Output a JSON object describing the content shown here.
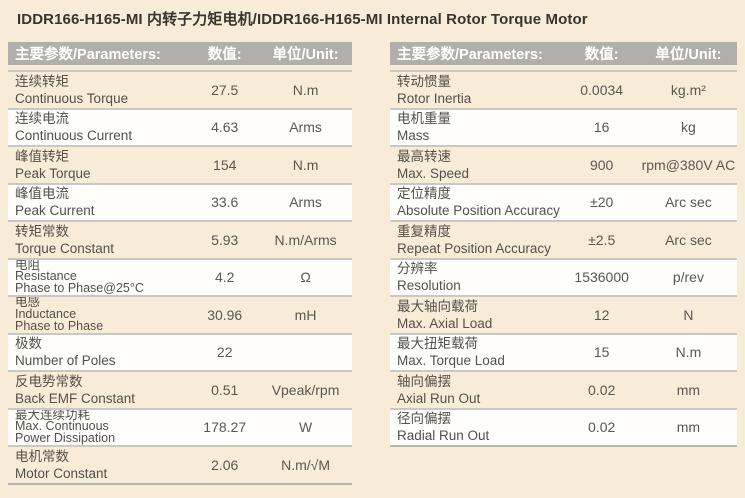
{
  "title": "IDDR166-H165-MI 内转子力矩电机/IDDR166-H165-MI Internal Rotor Torque Motor",
  "colors": {
    "page_bg": "#f8ecd8",
    "header_bg": "#b0afad",
    "header_text": "#ffffff",
    "row_beige": "#f8ecd8",
    "row_white": "#fffefc",
    "divider": "#cac8c4",
    "text": "#54504a"
  },
  "tables": [
    {
      "headers": {
        "param": "主要参数/Parameters:",
        "value": "数值:",
        "unit": "单位/Unit:"
      },
      "rows": [
        {
          "lines": [
            "连续转矩",
            "Continuous Torque"
          ],
          "value": "27.5",
          "unit": "N.m"
        },
        {
          "lines": [
            "连续电流",
            "Continuous Current"
          ],
          "value": "4.63",
          "unit": "Arms"
        },
        {
          "lines": [
            "峰值转矩",
            "Peak Torque"
          ],
          "value": "154",
          "unit": "N.m"
        },
        {
          "lines": [
            "峰值电流",
            "Peak Current"
          ],
          "value": "33.6",
          "unit": "Arms"
        },
        {
          "lines": [
            "转矩常数",
            "Torque Constant"
          ],
          "value": "5.93",
          "unit": "N.m/Arms"
        },
        {
          "lines": [
            "电阻",
            "Resistance",
            "Phase to Phase@25°C"
          ],
          "value": "4.2",
          "unit": "Ω"
        },
        {
          "lines": [
            "电感",
            "Inductance",
            "Phase to Phase"
          ],
          "value": "30.96",
          "unit": "mH"
        },
        {
          "lines": [
            "极数",
            "Number of Poles"
          ],
          "value": "22",
          "unit": ""
        },
        {
          "lines": [
            "反电势常数",
            "Back EMF Constant"
          ],
          "value": "0.51",
          "unit": "Vpeak/rpm"
        },
        {
          "lines": [
            "最大连续功耗",
            "Max. Continuous",
            "Power Dissipation"
          ],
          "value": "178.27",
          "unit": "W"
        },
        {
          "lines": [
            "电机常数",
            "Motor Constant"
          ],
          "value": "2.06",
          "unit": "N.m/√M"
        }
      ]
    },
    {
      "headers": {
        "param": "主要参数/Parameters:",
        "value": "数值:",
        "unit": "单位/Unit:"
      },
      "rows": [
        {
          "lines": [
            "转动惯量",
            "Rotor Inertia"
          ],
          "value": "0.0034",
          "unit": "kg.m²"
        },
        {
          "lines": [
            "电机重量",
            "Mass"
          ],
          "value": "16",
          "unit": "kg"
        },
        {
          "lines": [
            "最高转速",
            "Max. Speed"
          ],
          "value": "900",
          "unit": "rpm@380V AC"
        },
        {
          "lines": [
            "定位精度",
            "Absolute Position Accuracy"
          ],
          "value": "±20",
          "unit": "Arc sec"
        },
        {
          "lines": [
            "重复精度",
            "Repeat Position Accuracy"
          ],
          "value": "±2.5",
          "unit": "Arc sec"
        },
        {
          "lines": [
            "分辨率",
            "Resolution"
          ],
          "value": "1536000",
          "unit": "p/rev"
        },
        {
          "lines": [
            "最大轴向载荷",
            "Max. Axial Load"
          ],
          "value": "12",
          "unit": "N"
        },
        {
          "lines": [
            "最大扭矩载荷",
            "Max. Torque Load"
          ],
          "value": "15",
          "unit": "N.m"
        },
        {
          "lines": [
            "轴向偏摆",
            "Axial Run Out"
          ],
          "value": "0.02",
          "unit": "mm"
        },
        {
          "lines": [
            "径向偏摆",
            "Radial Run Out"
          ],
          "value": "0.02",
          "unit": "mm"
        }
      ]
    }
  ]
}
